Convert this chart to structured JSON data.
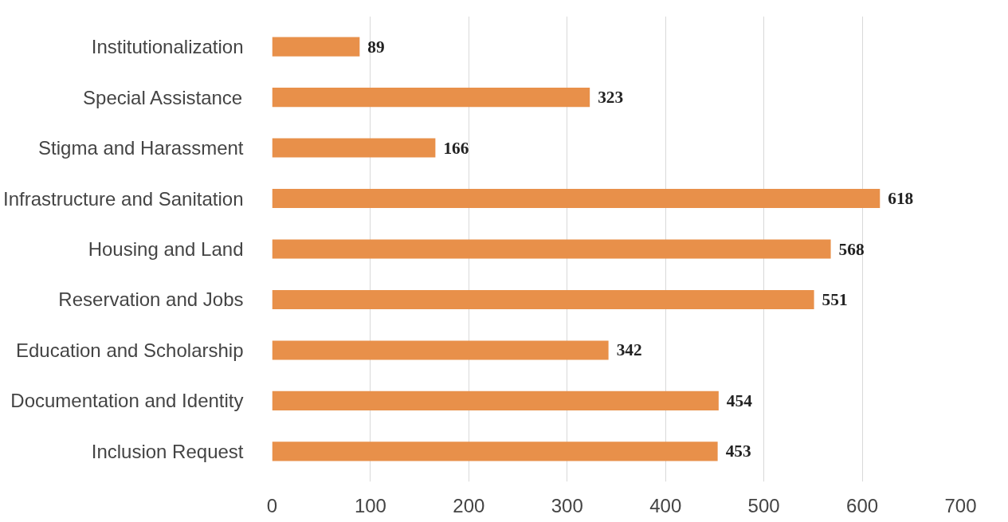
{
  "chart_data": {
    "type": "bar",
    "orientation": "horizontal",
    "categories": [
      "Institutionalization",
      "Special Assistance",
      "Stigma and Harassment",
      "Infrastructure and Sanitation",
      "Housing and Land",
      "Reservation and Jobs",
      "Education and Scholarship",
      "Documentation and Identity",
      "Inclusion Request"
    ],
    "values": [
      89,
      323,
      166,
      618,
      568,
      551,
      342,
      454,
      453
    ],
    "color": "#e8904a",
    "xlim": [
      0,
      700
    ],
    "xticks": [
      0,
      100,
      200,
      300,
      400,
      500,
      600,
      700
    ],
    "grid": "x",
    "data_labels": true
  }
}
